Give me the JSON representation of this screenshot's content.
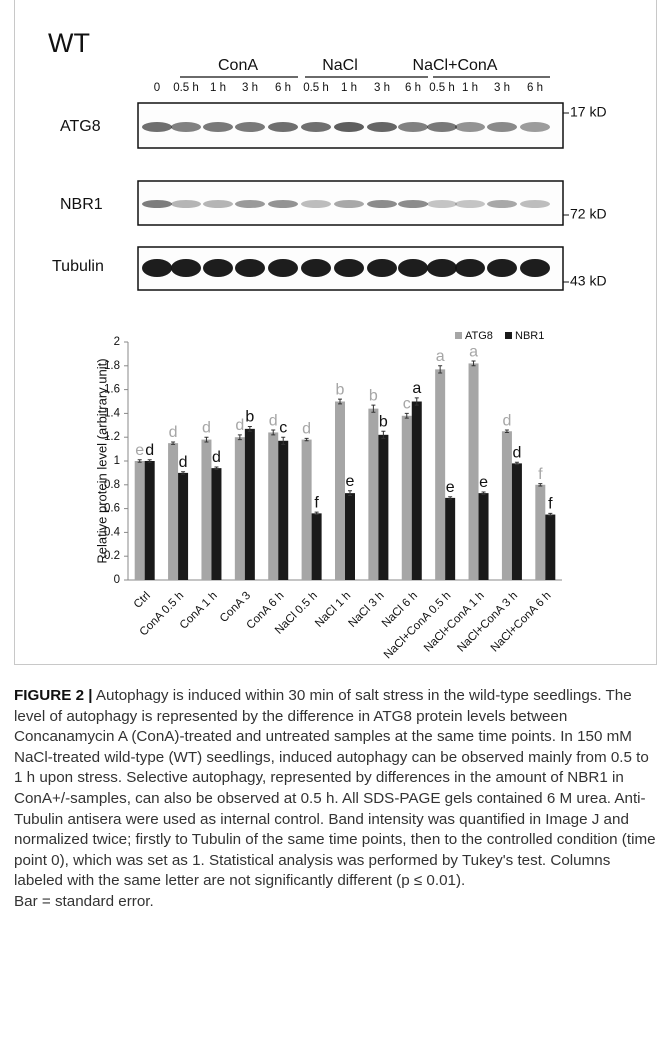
{
  "blot": {
    "genotype": "WT",
    "groups": [
      "ConA",
      "NaCl",
      "NaCl+ConA"
    ],
    "lanes": [
      "0",
      "0.5 h",
      "1 h",
      "3 h",
      "6 h",
      "0.5 h",
      "1 h",
      "3 h",
      "6 h",
      "0.5 h",
      "1 h",
      "3 h",
      "6 h"
    ],
    "rows": [
      {
        "label": "ATG8",
        "marker": "17 kD"
      },
      {
        "label": "NBR1",
        "marker": "72 kD"
      },
      {
        "label": "Tubulin",
        "marker": "43 kD"
      }
    ]
  },
  "chart_data": {
    "type": "bar",
    "y_label": "Relative protein level (arbitrary unit)",
    "categories": [
      "Ctrl",
      "ConA 0.5 h",
      "ConA 1 h",
      "ConA 3",
      "ConA 6 h",
      "NaCl 0.5 h",
      "NaCl 1 h",
      "NaCl 3 h",
      "NaCl 6 h",
      "NaCl+ConA 0.5 h",
      "NaCl+ConA 1 h",
      "NaCl+ConA 3 h",
      "NaCl+ConA 6 h"
    ],
    "series": [
      {
        "name": "ATG8",
        "color": "#a6a6a6",
        "values": [
          1.0,
          1.15,
          1.18,
          1.2,
          1.24,
          1.18,
          1.5,
          1.44,
          1.38,
          1.77,
          1.82,
          1.25,
          0.8
        ],
        "errors": [
          0.01,
          0.01,
          0.02,
          0.02,
          0.02,
          0.01,
          0.02,
          0.03,
          0.02,
          0.03,
          0.02,
          0.01,
          0.01
        ],
        "letters": [
          "e",
          "d",
          "d",
          "d",
          "d",
          "d",
          "b",
          "b",
          "c",
          "a",
          "a",
          "d",
          "f"
        ]
      },
      {
        "name": "NBR1",
        "color": "#1a1a1a",
        "values": [
          1.0,
          0.9,
          0.94,
          1.27,
          1.17,
          0.56,
          0.73,
          1.22,
          1.5,
          0.69,
          0.73,
          0.98,
          0.55
        ],
        "errors": [
          0.01,
          0.01,
          0.01,
          0.02,
          0.03,
          0.01,
          0.02,
          0.03,
          0.03,
          0.01,
          0.01,
          0.01,
          0.01
        ],
        "letters": [
          "d",
          "d",
          "d",
          "b",
          "c",
          "f",
          "e",
          "b",
          "a",
          "e",
          "e",
          "d",
          "f"
        ]
      }
    ],
    "ylim": [
      0,
      2
    ],
    "yticks": [
      0,
      0.2,
      0.4,
      0.6,
      0.8,
      1,
      1.2,
      1.4,
      1.6,
      1.8,
      2
    ]
  },
  "caption": {
    "label": "FIGURE 2 |",
    "text": "Autophagy is induced within 30 min of salt stress in the wild-type seedlings. The level of autophagy is represented by the difference in ATG8 protein levels between Concanamycin A (ConA)-treated and untreated samples at the same time points. In 150 mM NaCl-treated wild-type (WT) seedlings, induced autophagy can be observed mainly from 0.5 to 1 h upon stress. Selective autophagy, represented by differences in the amount of NBR1 in ConA+/-samples, can also be observed at 0.5 h. All SDS-PAGE gels contained 6 M urea. Anti-Tubulin antisera were used as internal control. Band intensity was quantified in Image J and normalized twice; firstly to Tubulin of the same time points, then to the controlled condition (time point 0), which was set as 1. Statistical analysis was performed by Tukey's test. Columns labeled with the same letter are not significantly different (p ≤ 0.01).",
    "note": "Bar = standard error."
  }
}
